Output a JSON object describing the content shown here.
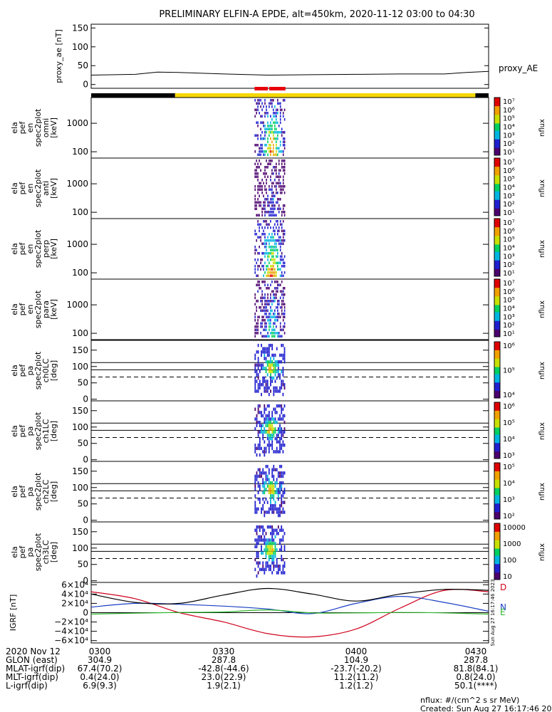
{
  "title": "PRELIMINARY ELFIN-A EPDE, alt=450km, 2020-11-12 03:00 to 04:30",
  "colors": {
    "sunlight_bar_eclipse": "#000000",
    "sunlight_bar_sun": "#f5d800",
    "science_zone_marker": "#e8000b",
    "igrf_x": "#d0021b",
    "igrf_y": "#1a3fc2",
    "igrf_z": "#2cb52c",
    "igrf_total": "#000000",
    "colorscale": [
      "#ffffff",
      "#4b006e",
      "#2020d0",
      "#00b4e0",
      "#00d060",
      "#c8e000",
      "#f0a000",
      "#e00000"
    ]
  },
  "proxy_ae": {
    "ylabel": "proxy_ae [nT]",
    "legend": "proxy_AE",
    "yticks": [
      "0",
      "50",
      "100",
      "150"
    ]
  },
  "energy_panels": [
    {
      "ylabel": [
        "ela",
        "pef",
        "en",
        "spec2plot",
        "omni",
        "[keV]"
      ],
      "yticks": [
        "100",
        "1000"
      ],
      "cb_label": "nflux",
      "cb_ticks": [
        "10⁷",
        "10⁶",
        "10⁵",
        "10⁴",
        "10³",
        "10²",
        "10¹"
      ]
    },
    {
      "ylabel": [
        "ela",
        "pef",
        "en",
        "spec2plot",
        "anti",
        "[keV]"
      ],
      "yticks": [
        "100",
        "1000"
      ],
      "cb_label": "nflux",
      "cb_ticks": [
        "10⁷",
        "10⁶",
        "10⁵",
        "10⁴",
        "10³",
        "10²",
        "10¹"
      ]
    },
    {
      "ylabel": [
        "ela",
        "pef",
        "en",
        "spec2plot",
        "perp",
        "[keV]"
      ],
      "yticks": [
        "100",
        "1000"
      ],
      "cb_label": "nflux",
      "cb_ticks": [
        "10⁷",
        "10⁶",
        "10⁵",
        "10⁴",
        "10³",
        "10²",
        "10¹"
      ]
    },
    {
      "ylabel": [
        "ela",
        "pef",
        "en",
        "spec2plot",
        "para",
        "[keV]"
      ],
      "yticks": [
        "100",
        "1000"
      ],
      "cb_label": "nflux",
      "cb_ticks": [
        "10⁷",
        "10⁶",
        "10⁵",
        "10⁴",
        "10³",
        "10²",
        "10¹"
      ]
    }
  ],
  "pa_panels": [
    {
      "ylabel": [
        "ela",
        "pef",
        "pa",
        "spec2plot",
        "ch0LC",
        "[deg]"
      ],
      "yticks": [
        "0",
        "50",
        "100",
        "150"
      ],
      "cb_label": "nflux",
      "cb_ticks": [
        "10⁶",
        "10⁵",
        "10⁴"
      ]
    },
    {
      "ylabel": [
        "ela",
        "pef",
        "pa",
        "spec2plot",
        "ch1LC",
        "[deg]"
      ],
      "yticks": [
        "0",
        "50",
        "100",
        "150"
      ],
      "cb_label": "nflux",
      "cb_ticks": [
        "10⁶",
        "10⁵",
        "10⁴",
        "10³"
      ]
    },
    {
      "ylabel": [
        "ela",
        "pef",
        "pa",
        "spec2plot",
        "ch2LC",
        "[deg]"
      ],
      "yticks": [
        "0",
        "50",
        "100",
        "150"
      ],
      "cb_label": "nflux",
      "cb_ticks": [
        "10⁵",
        "10⁴",
        "10³",
        "10²"
      ]
    },
    {
      "ylabel": [
        "ela",
        "pef",
        "pa",
        "spec2plot",
        "ch3LC",
        "[deg]"
      ],
      "yticks": [
        "0",
        "50",
        "100",
        "150"
      ],
      "cb_label": "nflux",
      "cb_ticks": [
        "10000",
        "1000",
        "100",
        "10"
      ]
    }
  ],
  "igrf": {
    "ylabel": "IGRF [nT]",
    "yticks": [
      "6×10⁴",
      "4×10⁴",
      "2×10⁴",
      "0",
      "−2×10⁴",
      "−4×10⁴",
      "−6×10⁴"
    ],
    "components": [
      "D",
      "N",
      "E"
    ],
    "side_note": "Sun Aug 27 16:17:46 2023"
  },
  "orbit_table": {
    "row_labels": [
      "2020 Nov 12",
      "GLON (east)",
      "MLAT-igrf(dip)",
      "MLT-igrf(dip)",
      "L-igrf(dip)"
    ],
    "columns": [
      {
        "values": [
          "0300",
          "304.9",
          "67.4(70.2)",
          "0.4(24.0)",
          "6.9(9.3)"
        ]
      },
      {
        "values": [
          "0330",
          "287.8",
          "-42.8(-44.6)",
          "23.0(22.9)",
          "1.9(2.1)"
        ]
      },
      {
        "values": [
          "0400",
          "104.9",
          "-23.7(-20.2)",
          "11.2(11.2)",
          "1.2(1.2)"
        ]
      },
      {
        "values": [
          "0430",
          "287.8",
          "81.8(84.1)",
          "0.8(24.0)",
          "50.1(****)"
        ]
      }
    ]
  },
  "footer": {
    "units": "nflux: #/(cm^2 s sr MeV)",
    "created": "Created: Sun Aug 27 16:17:46 2023"
  },
  "chart_data": [
    {
      "type": "line",
      "title": "PRELIMINARY ELFIN-A EPDE, alt=450km, 2020-11-12 03:00 to 04:30",
      "ylabel": "proxy_ae [nT]",
      "ylim": [
        -10,
        160
      ],
      "series": [
        {
          "name": "proxy_AE",
          "x": [
            "03:00",
            "03:10",
            "03:15",
            "03:20",
            "03:30",
            "03:40",
            "03:50",
            "04:00",
            "04:10",
            "04:20",
            "04:25",
            "04:30"
          ],
          "values": [
            25,
            27,
            33,
            32,
            28,
            25,
            26,
            27,
            28,
            28,
            32,
            35
          ]
        }
      ]
    },
    {
      "type": "heatmap",
      "ylabel": "[keV]",
      "description_axis": "log energy 60-8000 keV",
      "active_interval": [
        "03:37",
        "03:44"
      ],
      "scale": "log nflux 10^1-10^7"
    },
    {
      "type": "line",
      "ylabel": "IGRF [nT]",
      "ylim": [
        -65000,
        65000
      ],
      "series": [
        {
          "name": "D",
          "x": [
            "03:00",
            "03:10",
            "03:20",
            "03:30",
            "03:40",
            "03:50",
            "04:00",
            "04:10",
            "04:20",
            "04:30"
          ],
          "values": [
            45000,
            30000,
            0,
            -20000,
            -45000,
            -52000,
            -35000,
            10000,
            48000,
            45000
          ]
        },
        {
          "name": "N",
          "x": [
            "03:00",
            "03:10",
            "03:20",
            "03:30",
            "03:40",
            "03:50",
            "04:00",
            "04:10",
            "04:20",
            "04:30"
          ],
          "values": [
            12000,
            20000,
            18000,
            14000,
            8000,
            -2000,
            20000,
            35000,
            22000,
            3000
          ]
        },
        {
          "name": "E",
          "x": [
            "03:00",
            "03:10",
            "03:20",
            "03:30",
            "03:40",
            "03:50",
            "04:00",
            "04:10",
            "04:20",
            "04:30"
          ],
          "values": [
            -3000,
            -1000,
            500,
            1500,
            6000,
            -500,
            -500,
            500,
            -500,
            -3000
          ]
        },
        {
          "name": "total",
          "x": [
            "03:00",
            "03:10",
            "03:20",
            "03:30",
            "03:40",
            "03:50",
            "04:00",
            "04:10",
            "04:20",
            "04:30"
          ],
          "values": [
            40000,
            22000,
            20000,
            38000,
            52000,
            40000,
            25000,
            40000,
            50000,
            48000
          ]
        }
      ]
    }
  ]
}
